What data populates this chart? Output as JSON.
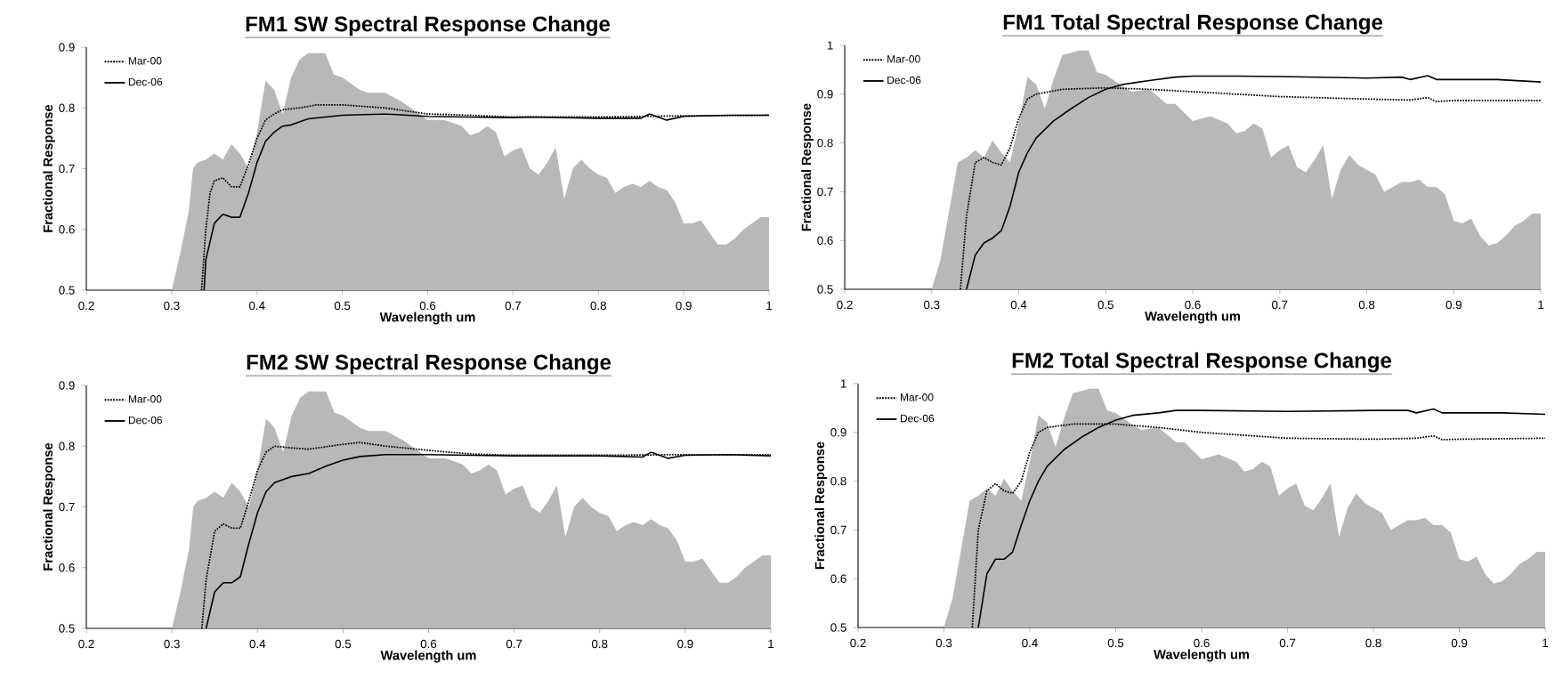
{
  "chart_data": [
    {
      "type": "line",
      "title": "FM1 SW Spectral Response Change",
      "xlabel": "Wavelength um",
      "ylabel": "Fractional Response",
      "legend": "top left",
      "xlim": [
        0.2,
        1
      ],
      "ylim": [
        0.5,
        0.9
      ],
      "xticks": [
        0.2,
        0.3,
        0.4,
        0.5,
        0.6,
        0.7,
        0.8,
        0.9,
        1
      ],
      "yticks": [
        0.5,
        0.6,
        0.7,
        0.8,
        0.9
      ],
      "series": [
        {
          "type": "area",
          "color": "#b8b8b8",
          "x": [
            0.3,
            0.31,
            0.32,
            0.325,
            0.33,
            0.34,
            0.35,
            0.36,
            0.37,
            0.38,
            0.39,
            0.4,
            0.41,
            0.42,
            0.43,
            0.44,
            0.45,
            0.46,
            0.47,
            0.48,
            0.49,
            0.5,
            0.52,
            0.53,
            0.55,
            0.57,
            0.58,
            0.6,
            0.62,
            0.64,
            0.65,
            0.66,
            0.67,
            0.68,
            0.69,
            0.7,
            0.71,
            0.72,
            0.73,
            0.74,
            0.75,
            0.76,
            0.77,
            0.78,
            0.79,
            0.8,
            0.81,
            0.82,
            0.83,
            0.84,
            0.85,
            0.86,
            0.87,
            0.88,
            0.89,
            0.9,
            0.91,
            0.92,
            0.93,
            0.94,
            0.95,
            0.96,
            0.97,
            0.98,
            0.99,
            1
          ],
          "values": [
            0.5,
            0.56,
            0.63,
            0.7,
            0.71,
            0.715,
            0.725,
            0.715,
            0.74,
            0.725,
            0.7,
            0.76,
            0.845,
            0.83,
            0.79,
            0.85,
            0.88,
            0.89,
            0.89,
            0.89,
            0.855,
            0.85,
            0.83,
            0.825,
            0.825,
            0.81,
            0.8,
            0.78,
            0.78,
            0.77,
            0.755,
            0.76,
            0.77,
            0.76,
            0.72,
            0.73,
            0.735,
            0.7,
            0.69,
            0.71,
            0.735,
            0.65,
            0.7,
            0.715,
            0.7,
            0.69,
            0.685,
            0.66,
            0.67,
            0.675,
            0.67,
            0.68,
            0.67,
            0.665,
            0.645,
            0.61,
            0.61,
            0.615,
            0.595,
            0.575,
            0.575,
            0.585,
            0.6,
            0.61,
            0.62,
            0.62
          ]
        },
        {
          "name": "Mar-00",
          "color": "#000000",
          "line_style": "dotted",
          "x": [
            0.335,
            0.34,
            0.345,
            0.35,
            0.36,
            0.37,
            0.38,
            0.39,
            0.4,
            0.41,
            0.42,
            0.43,
            0.45,
            0.47,
            0.5,
            0.55,
            0.6,
            0.65,
            0.7,
            0.8,
            0.9,
            1
          ],
          "values": [
            0.5,
            0.6,
            0.66,
            0.68,
            0.685,
            0.67,
            0.67,
            0.707,
            0.75,
            0.78,
            0.79,
            0.797,
            0.8,
            0.805,
            0.805,
            0.8,
            0.79,
            0.788,
            0.785,
            0.785,
            0.787,
            0.788
          ]
        },
        {
          "name": "Dec-06",
          "color": "#000000",
          "line_style": "solid",
          "x": [
            0.338,
            0.34,
            0.35,
            0.36,
            0.37,
            0.38,
            0.39,
            0.4,
            0.41,
            0.42,
            0.43,
            0.44,
            0.46,
            0.48,
            0.5,
            0.55,
            0.6,
            0.65,
            0.7,
            0.72,
            0.8,
            0.85,
            0.86,
            0.88,
            0.9,
            0.95,
            1
          ],
          "values": [
            0.5,
            0.55,
            0.61,
            0.625,
            0.62,
            0.62,
            0.66,
            0.71,
            0.745,
            0.76,
            0.77,
            0.772,
            0.782,
            0.785,
            0.788,
            0.79,
            0.786,
            0.785,
            0.784,
            0.785,
            0.783,
            0.783,
            0.79,
            0.78,
            0.786,
            0.788,
            0.788
          ]
        }
      ]
    },
    {
      "type": "line",
      "title": "FM1 Total Spectral Response Change",
      "xlabel": "Wavelength um",
      "ylabel": "Fractional Response",
      "legend": "top left",
      "xlim": [
        0.2,
        1
      ],
      "ylim": [
        0.5,
        1
      ],
      "xticks": [
        0.2,
        0.3,
        0.4,
        0.5,
        0.6,
        0.7,
        0.8,
        0.9,
        1
      ],
      "yticks": [
        0.5,
        0.6,
        0.7,
        0.8,
        0.9,
        1
      ],
      "series": [
        {
          "type": "area",
          "color": "#b8b8b8",
          "x": [
            0.3,
            0.31,
            0.32,
            0.33,
            0.34,
            0.35,
            0.36,
            0.37,
            0.38,
            0.39,
            0.4,
            0.41,
            0.42,
            0.43,
            0.44,
            0.45,
            0.46,
            0.47,
            0.48,
            0.49,
            0.5,
            0.52,
            0.53,
            0.55,
            0.57,
            0.58,
            0.6,
            0.62,
            0.64,
            0.65,
            0.66,
            0.67,
            0.68,
            0.69,
            0.7,
            0.71,
            0.72,
            0.73,
            0.74,
            0.75,
            0.76,
            0.77,
            0.78,
            0.79,
            0.8,
            0.81,
            0.82,
            0.83,
            0.84,
            0.85,
            0.86,
            0.87,
            0.88,
            0.89,
            0.9,
            0.91,
            0.92,
            0.93,
            0.94,
            0.95,
            0.96,
            0.97,
            0.98,
            0.99,
            1
          ],
          "values": [
            0.5,
            0.56,
            0.66,
            0.76,
            0.77,
            0.785,
            0.77,
            0.805,
            0.78,
            0.76,
            0.84,
            0.935,
            0.92,
            0.87,
            0.93,
            0.98,
            0.985,
            0.99,
            0.99,
            0.945,
            0.94,
            0.915,
            0.905,
            0.91,
            0.88,
            0.88,
            0.845,
            0.855,
            0.84,
            0.82,
            0.825,
            0.84,
            0.83,
            0.77,
            0.785,
            0.795,
            0.75,
            0.74,
            0.765,
            0.795,
            0.685,
            0.745,
            0.775,
            0.755,
            0.745,
            0.735,
            0.7,
            0.71,
            0.72,
            0.72,
            0.725,
            0.71,
            0.71,
            0.695,
            0.64,
            0.635,
            0.645,
            0.61,
            0.59,
            0.595,
            0.61,
            0.63,
            0.64,
            0.655,
            0.655
          ]
        },
        {
          "name": "Mar-00",
          "color": "#000000",
          "line_style": "dotted",
          "x": [
            0.333,
            0.34,
            0.35,
            0.36,
            0.37,
            0.38,
            0.39,
            0.4,
            0.41,
            0.42,
            0.45,
            0.5,
            0.55,
            0.6,
            0.7,
            0.8,
            0.85,
            0.87,
            0.88,
            0.9,
            1
          ],
          "values": [
            0.5,
            0.65,
            0.76,
            0.77,
            0.76,
            0.755,
            0.79,
            0.85,
            0.89,
            0.9,
            0.91,
            0.913,
            0.91,
            0.905,
            0.895,
            0.89,
            0.888,
            0.893,
            0.885,
            0.887,
            0.887
          ]
        },
        {
          "name": "Dec-06",
          "color": "#000000",
          "line_style": "solid",
          "x": [
            0.34,
            0.35,
            0.36,
            0.37,
            0.38,
            0.39,
            0.4,
            0.41,
            0.42,
            0.44,
            0.46,
            0.48,
            0.5,
            0.52,
            0.55,
            0.58,
            0.6,
            0.65,
            0.7,
            0.8,
            0.84,
            0.85,
            0.87,
            0.88,
            0.9,
            0.95,
            1
          ],
          "values": [
            0.5,
            0.57,
            0.595,
            0.605,
            0.62,
            0.67,
            0.74,
            0.78,
            0.81,
            0.845,
            0.87,
            0.893,
            0.91,
            0.92,
            0.928,
            0.935,
            0.937,
            0.937,
            0.936,
            0.933,
            0.935,
            0.93,
            0.938,
            0.93,
            0.93,
            0.93,
            0.925
          ]
        }
      ]
    },
    {
      "type": "line",
      "title": "FM2 SW Spectral Response Change",
      "xlabel": "Wavelength um",
      "ylabel": "Fractional Response",
      "legend": "top left",
      "xlim": [
        0.2,
        1
      ],
      "ylim": [
        0.5,
        0.9
      ],
      "xticks": [
        0.2,
        0.3,
        0.4,
        0.5,
        0.6,
        0.7,
        0.8,
        0.9,
        1
      ],
      "yticks": [
        0.5,
        0.6,
        0.7,
        0.8,
        0.9
      ],
      "series": [
        {
          "type": "area",
          "color": "#b8b8b8",
          "x": [
            0.3,
            0.31,
            0.32,
            0.325,
            0.33,
            0.34,
            0.35,
            0.36,
            0.37,
            0.38,
            0.39,
            0.4,
            0.41,
            0.42,
            0.43,
            0.44,
            0.45,
            0.46,
            0.47,
            0.48,
            0.49,
            0.5,
            0.52,
            0.53,
            0.55,
            0.57,
            0.58,
            0.6,
            0.62,
            0.64,
            0.65,
            0.66,
            0.67,
            0.68,
            0.69,
            0.7,
            0.71,
            0.72,
            0.73,
            0.74,
            0.75,
            0.76,
            0.77,
            0.78,
            0.79,
            0.8,
            0.81,
            0.82,
            0.83,
            0.84,
            0.85,
            0.86,
            0.87,
            0.88,
            0.89,
            0.9,
            0.91,
            0.92,
            0.93,
            0.94,
            0.95,
            0.96,
            0.97,
            0.98,
            0.99,
            1
          ],
          "values": [
            0.5,
            0.56,
            0.63,
            0.7,
            0.71,
            0.715,
            0.725,
            0.715,
            0.74,
            0.725,
            0.7,
            0.76,
            0.845,
            0.83,
            0.79,
            0.85,
            0.88,
            0.89,
            0.89,
            0.89,
            0.855,
            0.85,
            0.83,
            0.825,
            0.825,
            0.81,
            0.8,
            0.78,
            0.78,
            0.77,
            0.755,
            0.76,
            0.77,
            0.76,
            0.72,
            0.73,
            0.735,
            0.7,
            0.69,
            0.71,
            0.735,
            0.65,
            0.7,
            0.715,
            0.7,
            0.69,
            0.685,
            0.66,
            0.67,
            0.675,
            0.67,
            0.68,
            0.67,
            0.665,
            0.645,
            0.61,
            0.61,
            0.615,
            0.595,
            0.575,
            0.575,
            0.585,
            0.6,
            0.61,
            0.62,
            0.62
          ]
        },
        {
          "name": "Mar-00",
          "color": "#000000",
          "line_style": "dotted",
          "x": [
            0.335,
            0.34,
            0.35,
            0.36,
            0.37,
            0.38,
            0.39,
            0.4,
            0.41,
            0.42,
            0.44,
            0.46,
            0.5,
            0.52,
            0.55,
            0.6,
            0.65,
            0.7,
            0.8,
            0.9,
            1
          ],
          "values": [
            0.5,
            0.58,
            0.66,
            0.672,
            0.665,
            0.665,
            0.71,
            0.76,
            0.79,
            0.8,
            0.797,
            0.795,
            0.803,
            0.806,
            0.8,
            0.793,
            0.787,
            0.785,
            0.785,
            0.786,
            0.786
          ]
        },
        {
          "name": "Dec-06",
          "color": "#000000",
          "line_style": "solid",
          "x": [
            0.34,
            0.35,
            0.36,
            0.37,
            0.38,
            0.39,
            0.4,
            0.41,
            0.42,
            0.44,
            0.46,
            0.48,
            0.5,
            0.52,
            0.55,
            0.6,
            0.65,
            0.7,
            0.8,
            0.85,
            0.86,
            0.88,
            0.9,
            0.95,
            1
          ],
          "values": [
            0.5,
            0.56,
            0.575,
            0.575,
            0.585,
            0.64,
            0.69,
            0.725,
            0.74,
            0.75,
            0.755,
            0.767,
            0.777,
            0.783,
            0.786,
            0.786,
            0.785,
            0.784,
            0.784,
            0.782,
            0.79,
            0.78,
            0.785,
            0.786,
            0.784
          ]
        }
      ]
    },
    {
      "type": "line",
      "title": "FM2 Total Spectral Response Change",
      "xlabel": "Wavelength um",
      "ylabel": "Fractional Response",
      "legend": "top left",
      "xlim": [
        0.2,
        1
      ],
      "ylim": [
        0.5,
        1
      ],
      "xticks": [
        0.2,
        0.3,
        0.4,
        0.5,
        0.6,
        0.7,
        0.8,
        0.9,
        1
      ],
      "yticks": [
        0.5,
        0.6,
        0.7,
        0.8,
        0.9,
        1
      ],
      "series": [
        {
          "type": "area",
          "color": "#b8b8b8",
          "x": [
            0.3,
            0.31,
            0.32,
            0.33,
            0.34,
            0.35,
            0.36,
            0.37,
            0.38,
            0.39,
            0.4,
            0.41,
            0.42,
            0.43,
            0.44,
            0.45,
            0.46,
            0.47,
            0.48,
            0.49,
            0.5,
            0.52,
            0.53,
            0.55,
            0.57,
            0.58,
            0.6,
            0.62,
            0.64,
            0.65,
            0.66,
            0.67,
            0.68,
            0.69,
            0.7,
            0.71,
            0.72,
            0.73,
            0.74,
            0.75,
            0.76,
            0.77,
            0.78,
            0.79,
            0.8,
            0.81,
            0.82,
            0.83,
            0.84,
            0.85,
            0.86,
            0.87,
            0.88,
            0.89,
            0.9,
            0.91,
            0.92,
            0.93,
            0.94,
            0.95,
            0.96,
            0.97,
            0.98,
            0.99,
            1
          ],
          "values": [
            0.5,
            0.56,
            0.66,
            0.76,
            0.77,
            0.785,
            0.77,
            0.805,
            0.78,
            0.76,
            0.84,
            0.935,
            0.92,
            0.87,
            0.93,
            0.98,
            0.985,
            0.99,
            0.99,
            0.945,
            0.94,
            0.915,
            0.905,
            0.91,
            0.88,
            0.88,
            0.845,
            0.855,
            0.84,
            0.82,
            0.825,
            0.84,
            0.83,
            0.77,
            0.785,
            0.795,
            0.75,
            0.74,
            0.765,
            0.795,
            0.685,
            0.745,
            0.775,
            0.755,
            0.745,
            0.735,
            0.7,
            0.71,
            0.72,
            0.72,
            0.725,
            0.71,
            0.71,
            0.695,
            0.64,
            0.635,
            0.645,
            0.61,
            0.59,
            0.595,
            0.61,
            0.63,
            0.64,
            0.655,
            0.655
          ]
        },
        {
          "name": "Mar-00",
          "color": "#000000",
          "line_style": "dotted",
          "x": [
            0.333,
            0.34,
            0.35,
            0.36,
            0.37,
            0.38,
            0.39,
            0.4,
            0.41,
            0.42,
            0.45,
            0.5,
            0.55,
            0.6,
            0.7,
            0.8,
            0.85,
            0.87,
            0.88,
            0.9,
            1
          ],
          "values": [
            0.5,
            0.7,
            0.78,
            0.795,
            0.78,
            0.775,
            0.8,
            0.86,
            0.9,
            0.91,
            0.917,
            0.917,
            0.91,
            0.9,
            0.888,
            0.886,
            0.888,
            0.893,
            0.885,
            0.886,
            0.888
          ]
        },
        {
          "name": "Dec-06",
          "color": "#000000",
          "line_style": "solid",
          "x": [
            0.34,
            0.35,
            0.36,
            0.37,
            0.38,
            0.39,
            0.4,
            0.41,
            0.42,
            0.44,
            0.46,
            0.48,
            0.5,
            0.52,
            0.55,
            0.57,
            0.6,
            0.7,
            0.8,
            0.84,
            0.85,
            0.87,
            0.88,
            0.9,
            0.95,
            1
          ],
          "values": [
            0.5,
            0.61,
            0.64,
            0.64,
            0.655,
            0.71,
            0.76,
            0.8,
            0.83,
            0.865,
            0.89,
            0.91,
            0.925,
            0.935,
            0.94,
            0.945,
            0.945,
            0.943,
            0.945,
            0.945,
            0.94,
            0.948,
            0.94,
            0.94,
            0.94,
            0.937
          ]
        }
      ]
    }
  ]
}
